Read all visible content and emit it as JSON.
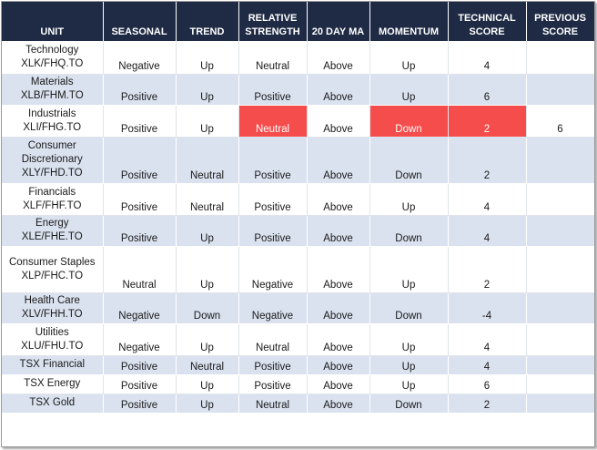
{
  "headers": [
    "UNIT",
    "SEASONAL",
    "TREND",
    "RELATIVE STRENGTH",
    "20 DAY MA",
    "MOMENTUM",
    "TECHNICAL SCORE",
    "PREVIOUS SCORE"
  ],
  "rows": [
    {
      "unit": [
        "Technology",
        "XLK/FHQ.TO"
      ],
      "seasonal": "Negative",
      "trend": "Up",
      "rs": "Neutral",
      "ma": "Above",
      "momentum": "Up",
      "score": "4",
      "prev": ""
    },
    {
      "unit": [
        "Materials",
        "XLB/FHM.TO"
      ],
      "seasonal": "Positive",
      "trend": "Up",
      "rs": "Positive",
      "ma": "Above",
      "momentum": "Up",
      "score": "6",
      "prev": ""
    },
    {
      "unit": [
        "Industrials",
        "XLI/FHG.TO"
      ],
      "seasonal": "Positive",
      "trend": "Up",
      "rs": "Neutral",
      "ma": "Above",
      "momentum": "Down",
      "score": "2",
      "prev": "6"
    },
    {
      "unit": [
        "Consumer",
        "Discretionary",
        "XLY/FHD.TO"
      ],
      "seasonal": "Positive",
      "trend": "Neutral",
      "rs": "Positive",
      "ma": "Above",
      "momentum": "Down",
      "score": "2",
      "prev": ""
    },
    {
      "unit": [
        "Financials",
        "XLF/FHF.TO"
      ],
      "seasonal": "Positive",
      "trend": "Neutral",
      "rs": "Positive",
      "ma": "Above",
      "momentum": "Up",
      "score": "4",
      "prev": ""
    },
    {
      "unit": [
        "Energy",
        "XLE/FHE.TO"
      ],
      "seasonal": "Positive",
      "trend": "Up",
      "rs": "Positive",
      "ma": "Above",
      "momentum": "Down",
      "score": "4",
      "prev": ""
    },
    {
      "unit": [
        "Consumer Staples",
        "XLP/FHC.TO"
      ],
      "seasonal": "Neutral",
      "trend": "Up",
      "rs": "Negative",
      "ma": "Above",
      "momentum": "Up",
      "score": "2",
      "prev": ""
    },
    {
      "unit": [
        "Health Care",
        "XLV/FHH.TO"
      ],
      "seasonal": "Negative",
      "trend": "Down",
      "rs": "Negative",
      "ma": "Above",
      "momentum": "Down",
      "score": "-4",
      "prev": ""
    },
    {
      "unit": [
        "Utilities",
        "XLU/FHU.TO"
      ],
      "seasonal": "Negative",
      "trend": "Up",
      "rs": "Neutral",
      "ma": "Above",
      "momentum": "Up",
      "score": "4",
      "prev": ""
    },
    {
      "unit": [
        "TSX Financial"
      ],
      "seasonal": "Positive",
      "trend": "Neutral",
      "rs": "Positive",
      "ma": "Above",
      "momentum": "Up",
      "score": "4",
      "prev": ""
    },
    {
      "unit": [
        "TSX Energy"
      ],
      "seasonal": "Positive",
      "trend": "Up",
      "rs": "Positive",
      "ma": "Above",
      "momentum": "Up",
      "score": "6",
      "prev": ""
    },
    {
      "unit": [
        "TSX Gold"
      ],
      "seasonal": "Positive",
      "trend": "Up",
      "rs": "Neutral",
      "ma": "Above",
      "momentum": "Down",
      "score": "2",
      "prev": ""
    }
  ],
  "highlights": {
    "row": 2,
    "cells": [
      "rs",
      "momentum",
      "score"
    ],
    "color": "#f54c4c"
  },
  "colors": {
    "header_bg": "#1f2a44",
    "band": "#dae2ef",
    "highlight": "#f54c4c"
  }
}
